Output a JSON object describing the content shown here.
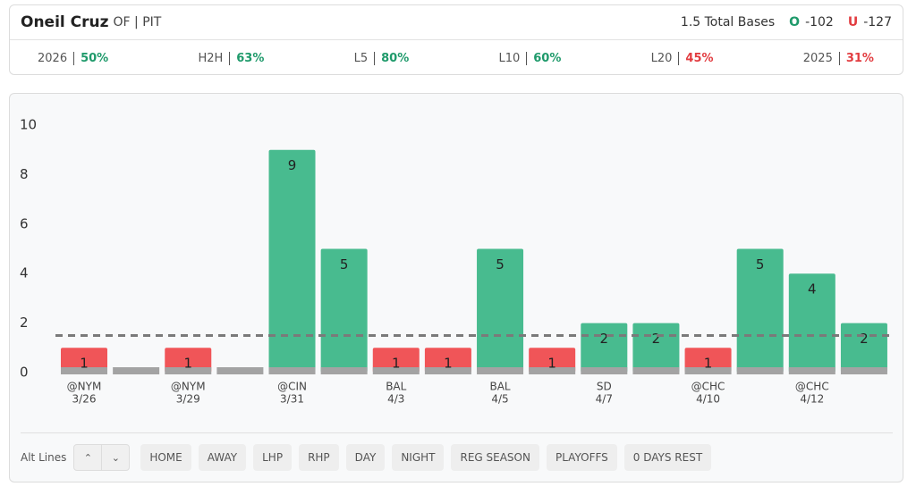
{
  "header": {
    "player": "Oneil Cruz",
    "position": "OF | PIT",
    "prop": "1.5 Total Bases",
    "over": {
      "label": "O",
      "odds": "-102"
    },
    "under": {
      "label": "U",
      "odds": "-127"
    }
  },
  "stats": [
    {
      "label": "2026",
      "value": "50%",
      "color": "#1f9a6b"
    },
    {
      "label": "H2H",
      "value": "63%",
      "color": "#1f9a6b"
    },
    {
      "label": "L5",
      "value": "80%",
      "color": "#1f9a6b"
    },
    {
      "label": "L10",
      "value": "60%",
      "color": "#1f9a6b"
    },
    {
      "label": "L20",
      "value": "45%",
      "color": "#e23c40"
    },
    {
      "label": "2025",
      "value": "31%",
      "color": "#e23c40"
    }
  ],
  "chart_data": {
    "type": "bar",
    "categories": [
      "@NYM",
      null,
      "@NYM",
      null,
      "@CIN",
      null,
      "BAL",
      null,
      "BAL",
      null,
      "SD",
      null,
      "@CHC",
      null,
      "@CHC",
      null
    ],
    "dates": [
      "3/26",
      null,
      "3/29",
      null,
      "3/31",
      null,
      "4/3",
      null,
      "4/5",
      null,
      "4/7",
      null,
      "4/10",
      null,
      "4/12",
      null
    ],
    "values": [
      1,
      0,
      1,
      0,
      9,
      5,
      1,
      1,
      5,
      1,
      2,
      2,
      1,
      5,
      4,
      2
    ],
    "threshold": 1.5,
    "over_color": "#48bb8f",
    "under_color": "#f05558",
    "base_color": "#a3a3a3",
    "ylim": [
      0,
      10
    ],
    "yticks": [
      0,
      2,
      4,
      6,
      8,
      10
    ]
  },
  "toolbar": {
    "alt_lines": "Alt Lines",
    "filters": [
      "HOME",
      "AWAY",
      "LHP",
      "RHP",
      "DAY",
      "NIGHT",
      "REG SEASON",
      "PLAYOFFS",
      "0 DAYS REST"
    ]
  }
}
